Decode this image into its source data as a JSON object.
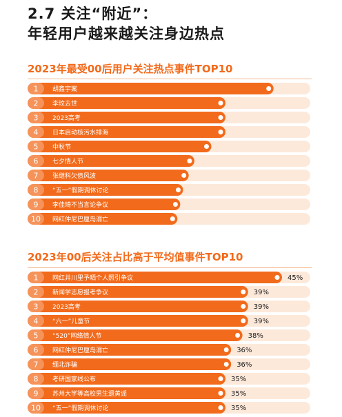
{
  "header": {
    "line1": "2.7 关注“附近”：",
    "line2": "年轻用户越来越关注身边热点"
  },
  "colors": {
    "accent": "#f26a1b",
    "track": "#fde9da",
    "text": "#1a1a1a",
    "badge_text": "#ffffff"
  },
  "chart_data": [
    {
      "type": "bar",
      "orientation": "horizontal",
      "title": "2023年最受00后用户关注热点事件TOP10",
      "ranks": [
        "1",
        "2",
        "3",
        "4",
        "5",
        "6",
        "7",
        "8",
        "9",
        "10"
      ],
      "categories": [
        "胡鑫宇案",
        "李玟去世",
        "2023高考",
        "日本启动核污水排海",
        "中秋节",
        "七夕情人节",
        "张继科欠债风波",
        "“五一”假期调休讨论",
        "李佳琦不当言论争议",
        "网红仲尼巴厘岛溺亡"
      ],
      "values": [
        0.87,
        0.7,
        0.7,
        0.7,
        0.65,
        0.59,
        0.57,
        0.55,
        0.54,
        0.53
      ],
      "value_unit": "relative share of bar track (no labels shown)",
      "xlim": [
        0,
        1
      ]
    },
    {
      "type": "bar",
      "orientation": "horizontal",
      "title": "2023年00后关注占比高于平均值事件TOP10",
      "ranks": [
        "1",
        "2",
        "3",
        "4",
        "5",
        "6",
        "7",
        "8",
        "9",
        "10"
      ],
      "categories": [
        "网红井川里予晒个人照引争议",
        "新闻学志愿报考争议",
        "2023高考",
        "“六一”儿童节",
        "“520”网络情人节",
        "网红仲尼巴厘岛溺亡",
        "缅北诈骗",
        "考研国家线公布",
        "苏州大学等高校男生遗黄谣",
        "“五一”假期调休讨论"
      ],
      "values": [
        45,
        39,
        39,
        39,
        38,
        36,
        36,
        35,
        35,
        35
      ],
      "value_labels": [
        "45%",
        "39%",
        "39%",
        "39%",
        "38%",
        "36%",
        "36%",
        "35%",
        "35%",
        "35%"
      ],
      "xlim": [
        0,
        50
      ]
    }
  ]
}
